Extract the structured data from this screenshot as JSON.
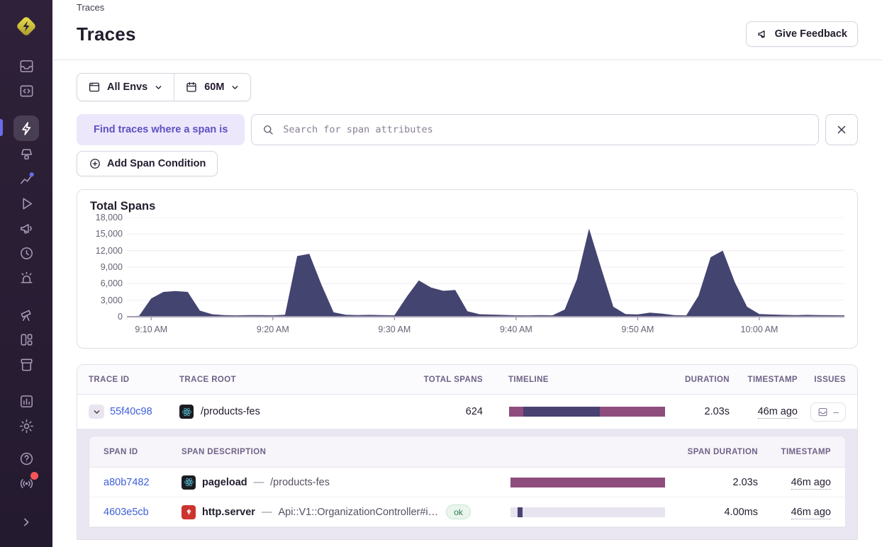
{
  "header": {
    "breadcrumb": "Traces",
    "title": "Traces",
    "feedback_label": "Give Feedback"
  },
  "filters": {
    "env_label": "All Envs",
    "time_label": "60M"
  },
  "trace_search": {
    "prefix_label": "Find traces where a span is",
    "placeholder": "Search for span attributes",
    "add_condition_label": "Add Span Condition"
  },
  "chart_data": {
    "type": "area",
    "title": "Total Spans",
    "xlabel": "",
    "ylabel": "",
    "ylim": [
      0,
      18000
    ],
    "grid": "horizontal",
    "legend": false,
    "yticks": [
      0,
      3000,
      6000,
      9000,
      12000,
      15000,
      18000
    ],
    "ytick_labels": [
      "0",
      "3,000",
      "6,000",
      "9,000",
      "12,000",
      "15,000",
      "18,000"
    ],
    "xticks": [
      {
        "label": "9:10 AM",
        "f": 0.0339
      },
      {
        "label": "9:20 AM",
        "f": 0.2034
      },
      {
        "label": "9:30 AM",
        "f": 0.3729
      },
      {
        "label": "9:40 AM",
        "f": 0.5424
      },
      {
        "label": "9:50 AM",
        "f": 0.7119
      },
      {
        "label": "10:00 AM",
        "f": 0.8814
      }
    ],
    "times": [
      "9:08 AM",
      "9:09 AM",
      "9:10 AM",
      "9:11 AM",
      "9:12 AM",
      "9:13 AM",
      "9:14 AM",
      "9:15 AM",
      "9:16 AM",
      "9:17 AM",
      "9:18 AM",
      "9:19 AM",
      "9:20 AM",
      "9:21 AM",
      "9:22 AM",
      "9:23 AM",
      "9:24 AM",
      "9:25 AM",
      "9:26 AM",
      "9:27 AM",
      "9:28 AM",
      "9:29 AM",
      "9:30 AM",
      "9:31 AM",
      "9:32 AM",
      "9:33 AM",
      "9:34 AM",
      "9:35 AM",
      "9:36 AM",
      "9:37 AM",
      "9:38 AM",
      "9:39 AM",
      "9:40 AM",
      "9:41 AM",
      "9:42 AM",
      "9:43 AM",
      "9:44 AM",
      "9:45 AM",
      "9:46 AM",
      "9:47 AM",
      "9:48 AM",
      "9:49 AM",
      "9:50 AM",
      "9:51 AM",
      "9:52 AM",
      "9:53 AM",
      "9:54 AM",
      "9:55 AM",
      "9:56 AM",
      "9:57 AM",
      "9:58 AM",
      "9:59 AM",
      "10:00 AM",
      "10:01 AM",
      "10:02 AM",
      "10:03 AM",
      "10:04 AM",
      "10:05 AM",
      "10:06 AM",
      "10:07 AM"
    ],
    "values": [
      60,
      150,
      3300,
      4500,
      4650,
      4500,
      1100,
      450,
      300,
      250,
      280,
      300,
      260,
      350,
      11000,
      11400,
      5800,
      800,
      350,
      300,
      330,
      280,
      260,
      3600,
      6600,
      5300,
      4700,
      4850,
      1000,
      450,
      380,
      320,
      260,
      250,
      290,
      260,
      1300,
      6800,
      16000,
      8800,
      1800,
      480,
      420,
      750,
      560,
      280,
      240,
      3800,
      10800,
      12000,
      6200,
      1800,
      480,
      400,
      340,
      300,
      330,
      290,
      270,
      250
    ]
  },
  "traces_table": {
    "headers": [
      "TRACE ID",
      "TRACE ROOT",
      "TOTAL SPANS",
      "TIMELINE",
      "DURATION",
      "TIMESTAMP",
      "ISSUES"
    ],
    "rows": [
      {
        "trace_id": "55f40c98",
        "root_platform": "react",
        "trace_root": "/products-fes",
        "total_spans": "624",
        "duration": "2.03s",
        "timestamp": "46m ago",
        "issues": "–",
        "timeline": {
          "track": false,
          "segments": [
            {
              "c": "plum",
              "x": 0,
              "w": 0.093
            },
            {
              "c": "indigo",
              "x": 0.093,
              "w": 0.49
            },
            {
              "c": "plum",
              "x": 0.583,
              "w": 0.417
            }
          ]
        }
      }
    ]
  },
  "spans_table": {
    "headers": [
      "SPAN ID",
      "SPAN DESCRIPTION",
      "SPAN DURATION",
      "TIMESTAMP"
    ],
    "rows": [
      {
        "span_id": "a80b7482",
        "platform": "react",
        "op": "pageload",
        "sep": "—",
        "description": "/products-fes",
        "status": "",
        "duration": "2.03s",
        "timestamp": "46m ago",
        "timeline": {
          "track": false,
          "segments": [
            {
              "c": "plum",
              "x": 0,
              "w": 1
            }
          ]
        }
      },
      {
        "span_id": "4603e5cb",
        "platform": "ruby",
        "op": "http.server",
        "sep": "—",
        "description": "Api::V1::OrganizationController#i…",
        "status": "ok",
        "duration": "4.00ms",
        "timestamp": "46m ago",
        "timeline": {
          "track": true,
          "segments": [
            {
              "c": "indigo",
              "x": 0.045,
              "w": 0.032
            }
          ]
        }
      }
    ]
  },
  "colors": {
    "plum": "#8e4d7d",
    "indigo": "#494170",
    "track": "#e7e3ef",
    "chart_fill": "#434470",
    "accent_blue": "#6d6beb",
    "link_blue": "#3e5fd9",
    "sidebar_bg": "#2e2139",
    "notification_red": "#f55459"
  },
  "sidebar": {
    "active": "explore",
    "items": [
      "issues",
      "projects",
      "explore",
      "insights",
      "performance",
      "replays",
      "feedback",
      "crons",
      "alerts",
      "discover",
      "dashboards",
      "releases",
      "stats",
      "settings",
      "help",
      "whats-new"
    ]
  }
}
